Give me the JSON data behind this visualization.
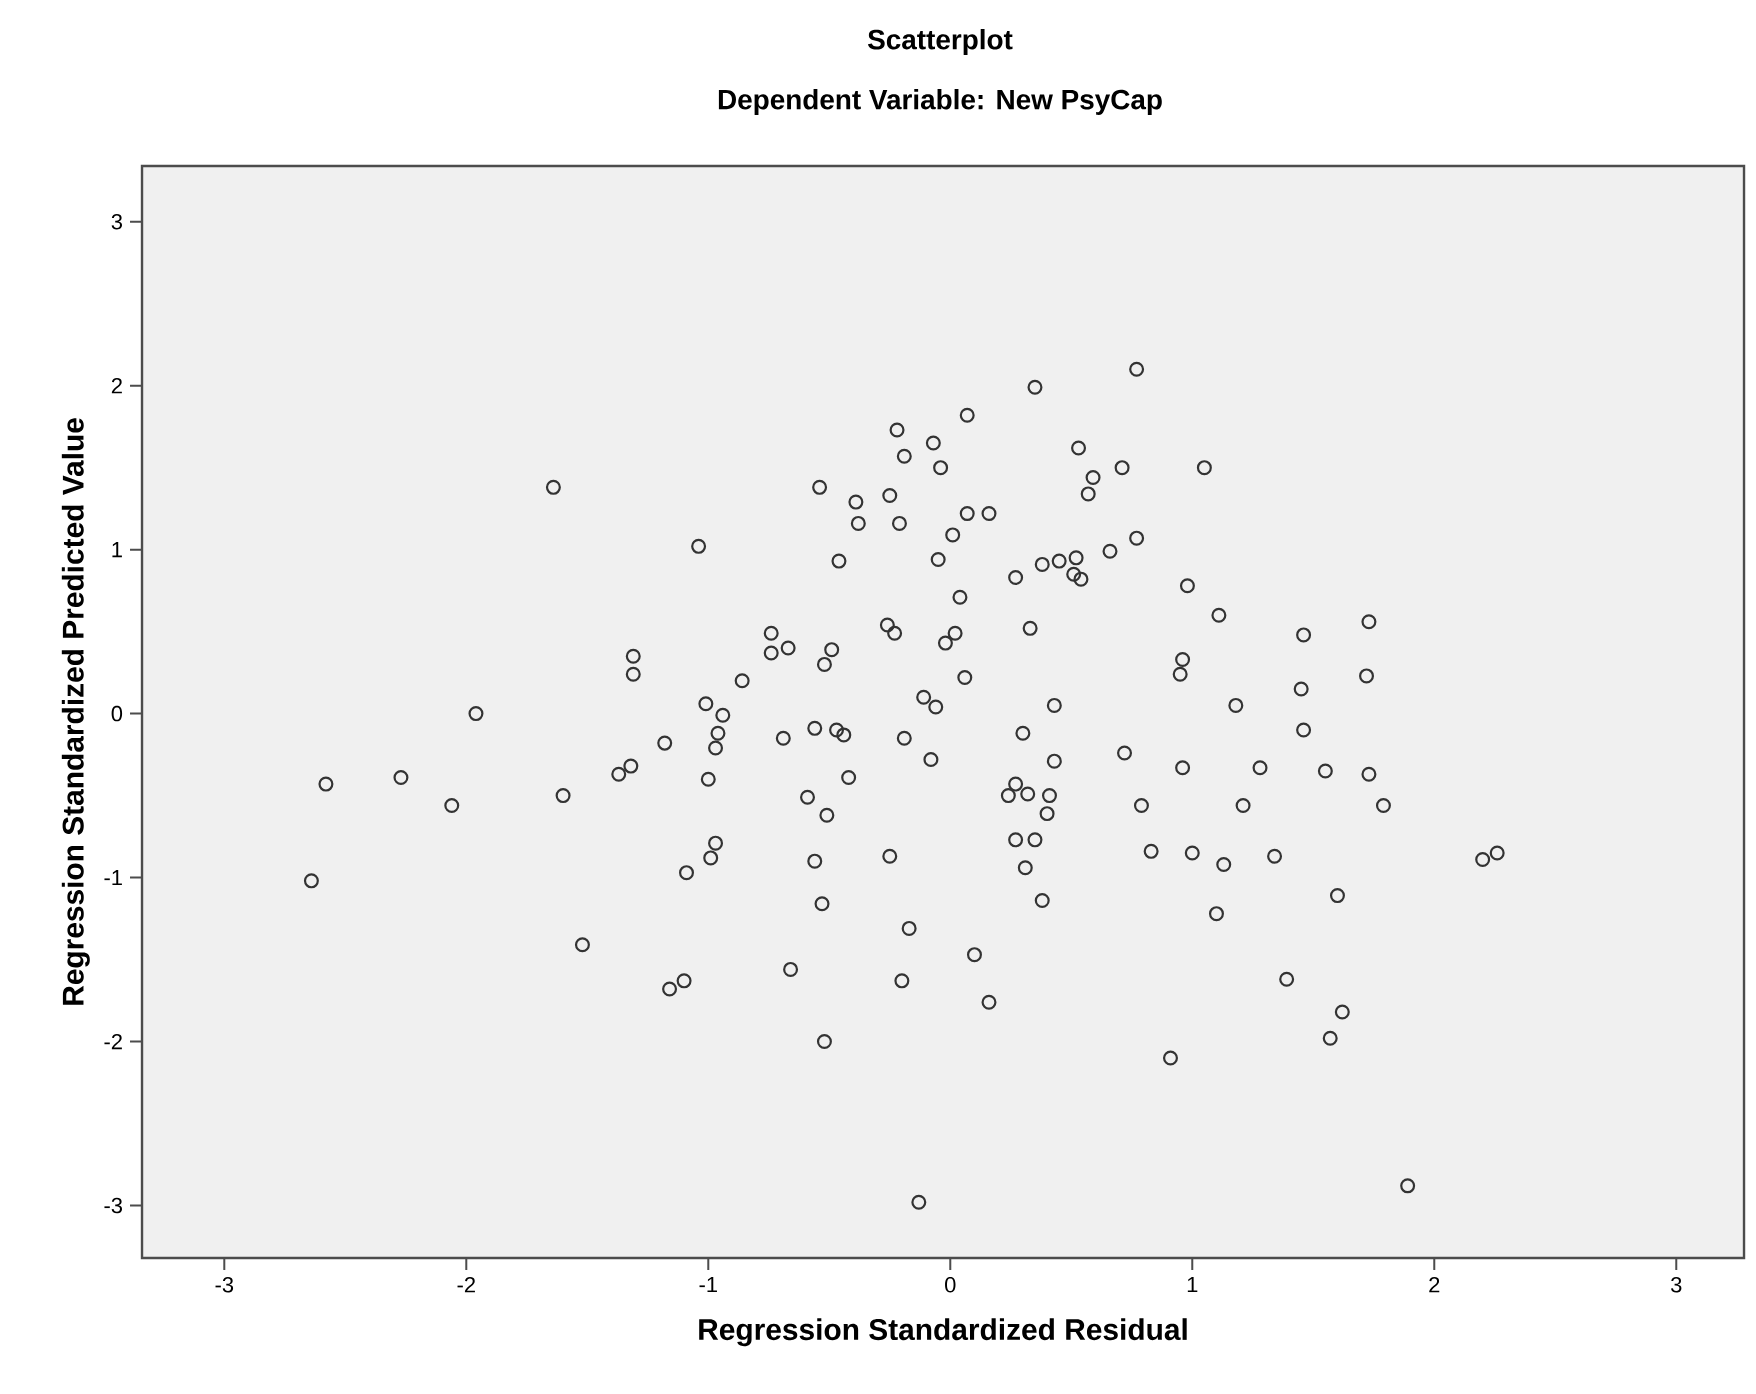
{
  "chart_data": {
    "type": "scatter",
    "title": "Scatterplot",
    "subtitle": "Dependent Variable: New PsyCap",
    "xlabel": "Regression Standardized Residual",
    "ylabel": "Regression Standardized Predicted Value",
    "xlim": [
      -3.34,
      3.28
    ],
    "ylim": [
      -3.32,
      3.34
    ],
    "xticks": [
      -3,
      -2,
      -1,
      0,
      1,
      2,
      3
    ],
    "yticks": [
      -3,
      -2,
      -1,
      0,
      1,
      2,
      3
    ],
    "grid": false,
    "marker": "circle",
    "series": [
      {
        "color": "#333333",
        "x": [
          -2.64,
          -2.58,
          -2.27,
          -2.06,
          -1.96,
          -1.6,
          -1.37,
          -1.32,
          -1.18,
          -1.52,
          -1.16,
          -1.64,
          -1.31,
          -1.31,
          0.77,
          0.35,
          0.07,
          -0.22,
          -0.07,
          -0.19,
          -0.04,
          0.53,
          0.71,
          0.59,
          0.57,
          -0.54,
          -0.25,
          -0.39,
          -0.38,
          -0.21,
          0.07,
          0.16,
          0.01,
          -1.04,
          -0.46,
          -0.05,
          0.27,
          0.38,
          0.45,
          0.52,
          0.51,
          0.54,
          0.66,
          0.77,
          0.98,
          0.04,
          0.33,
          -0.26,
          -0.23,
          0.02,
          -0.02,
          0.06,
          -0.74,
          -0.74,
          -0.67,
          -0.49,
          -0.52,
          -0.86,
          -1.01,
          -0.94,
          -0.11,
          -0.06,
          0.43,
          0.96,
          0.95,
          1.05,
          1.11,
          1.46,
          1.73,
          1.45,
          1.72,
          1.18,
          1.46,
          0.96,
          1.28,
          1.55,
          1.73,
          0.79,
          1.21,
          1.79,
          0.83,
          1.0,
          1.13,
          1.34,
          2.2,
          2.26,
          1.6,
          1.1,
          1.39,
          1.62,
          1.57,
          0.91,
          1.89,
          -0.96,
          -0.97,
          -1.0,
          -0.69,
          -0.56,
          -0.47,
          -0.44,
          -0.19,
          -0.08,
          0.3,
          0.43,
          -0.42,
          -0.59,
          -0.51,
          0.27,
          0.24,
          0.32,
          0.41,
          0.4,
          0.72,
          -0.97,
          -0.99,
          -1.09,
          -0.56,
          -0.25,
          0.27,
          0.35,
          0.31,
          0.38,
          -0.53,
          -0.17,
          0.1,
          0.16,
          -0.2,
          -0.66,
          -1.1,
          -0.52,
          -0.13
        ],
        "values": [
          -1.02,
          -0.43,
          -0.39,
          -0.56,
          0.0,
          -0.5,
          -0.37,
          -0.32,
          -0.18,
          -1.41,
          -1.68,
          1.38,
          0.35,
          0.24,
          2.1,
          1.99,
          1.82,
          1.73,
          1.65,
          1.57,
          1.5,
          1.62,
          1.5,
          1.44,
          1.34,
          1.38,
          1.33,
          1.29,
          1.16,
          1.16,
          1.22,
          1.22,
          1.09,
          1.02,
          0.93,
          0.94,
          0.83,
          0.91,
          0.93,
          0.95,
          0.85,
          0.82,
          0.99,
          1.07,
          0.78,
          0.71,
          0.52,
          0.54,
          0.49,
          0.49,
          0.43,
          0.22,
          0.49,
          0.37,
          0.4,
          0.39,
          0.3,
          0.2,
          0.06,
          -0.01,
          0.1,
          0.04,
          0.05,
          0.33,
          0.24,
          1.5,
          0.6,
          0.48,
          0.56,
          0.15,
          0.23,
          0.05,
          -0.1,
          -0.33,
          -0.33,
          -0.35,
          -0.37,
          -0.56,
          -0.56,
          -0.56,
          -0.84,
          -0.85,
          -0.92,
          -0.87,
          -0.89,
          -0.85,
          -1.11,
          -1.22,
          -1.62,
          -1.82,
          -1.98,
          -2.1,
          -2.88,
          -0.12,
          -0.21,
          -0.4,
          -0.15,
          -0.09,
          -0.1,
          -0.13,
          -0.15,
          -0.28,
          -0.12,
          -0.29,
          -0.39,
          -0.51,
          -0.62,
          -0.43,
          -0.5,
          -0.49,
          -0.5,
          -0.61,
          -0.24,
          -0.79,
          -0.88,
          -0.97,
          -0.9,
          -0.87,
          -0.77,
          -0.77,
          -0.94,
          -1.14,
          -1.16,
          -1.31,
          -1.47,
          -1.76,
          -1.63,
          -1.56,
          -1.63,
          -2.0,
          -2.98
        ]
      }
    ]
  }
}
